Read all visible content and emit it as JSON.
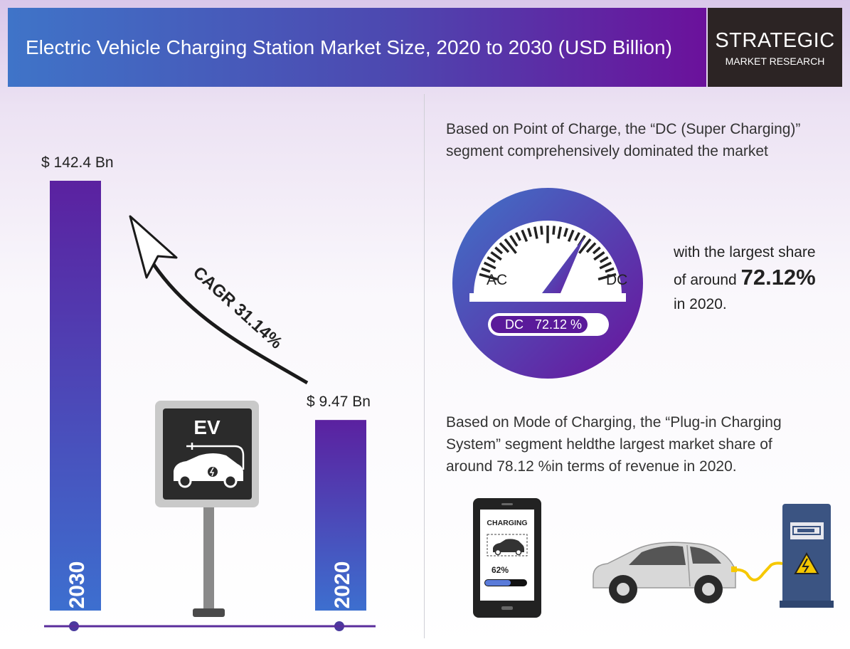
{
  "header": {
    "title": "Electric Vehicle Charging Station Market Size, 2020 to 2030 (USD Billion)",
    "brand_line1": "STRATEGIC",
    "brand_line2": "MARKET RESEARCH"
  },
  "chart_data": {
    "type": "bar",
    "categories": [
      "2030",
      "2020"
    ],
    "values": [
      142.4,
      9.47
    ],
    "value_labels": [
      "$ 142.4 Bn",
      "$ 9.47 Bn"
    ],
    "title": "Electric Vehicle Charging Station Market Size, 2020 to 2030 (USD Billion)",
    "annotation": "CAGR 31.14%",
    "colors": {
      "bar_top": "#5b21a0",
      "bar_bottom": "#3b6ccc",
      "axis": "#5a2d9c"
    }
  },
  "sign": {
    "label": "EV"
  },
  "point_of_charge": {
    "heading_line1": "Based on Point of Charge, the “DC (Super Charging)”",
    "heading_line2": "segment comprehensively dominated the market",
    "gauge_left": "AC",
    "gauge_right": "DC",
    "pill_label": "DC",
    "pill_value": "72.12 %",
    "share": 72.12,
    "share_line1": "with the largest share",
    "share_line2_prefix": "of around",
    "share_value": "72.12%",
    "share_line3": "in 2020."
  },
  "mode_of_charging": {
    "line1": "Based on Mode of Charging, the “Plug-in Charging",
    "line2": "System” segment heldthe largest market share of",
    "line3": "around 78.12 %in terms of revenue in 2020."
  },
  "phone": {
    "status": "CHARGING",
    "percent": "62%",
    "level": 0.62
  }
}
